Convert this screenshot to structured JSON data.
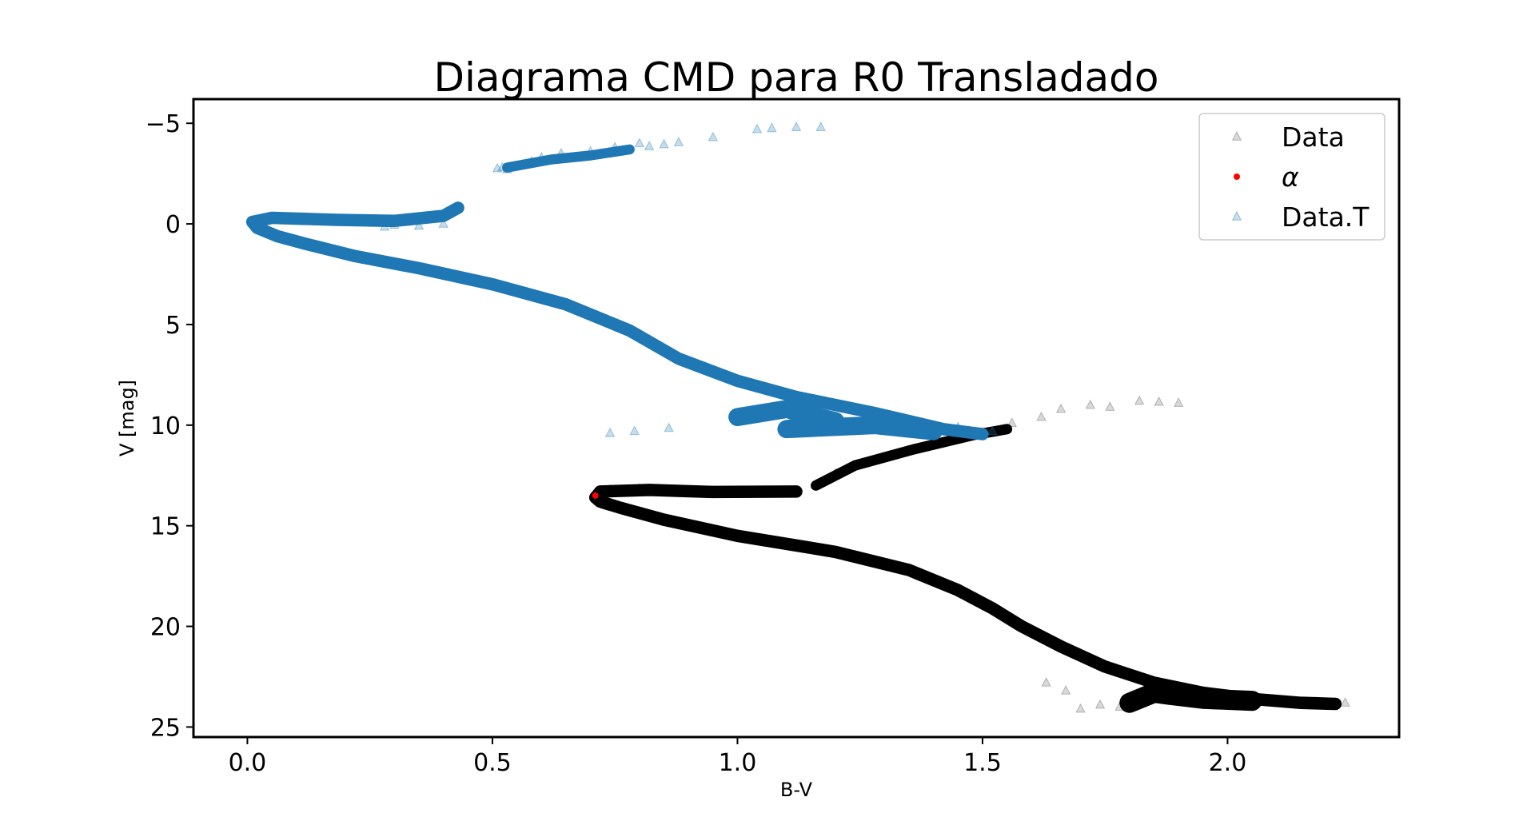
{
  "chart_data": {
    "type": "scatter",
    "title": "Diagrama CMD para R0 Transladado",
    "xlabel": "B-V",
    "ylabel": "V [mag]",
    "xlim": [
      -0.11,
      2.35
    ],
    "ylim": [
      25.5,
      -6.2
    ],
    "y_inverted": true,
    "grid": false,
    "legend_position": "top-right",
    "xticks": [
      {
        "value": 0.0,
        "label": "0.0"
      },
      {
        "value": 0.5,
        "label": "0.5"
      },
      {
        "value": 1.0,
        "label": "1.0"
      },
      {
        "value": 1.5,
        "label": "1.5"
      },
      {
        "value": 2.0,
        "label": "2.0"
      }
    ],
    "yticks": [
      {
        "value": -5,
        "label": "−5"
      },
      {
        "value": 0,
        "label": "0"
      },
      {
        "value": 5,
        "label": "5"
      },
      {
        "value": 10,
        "label": "10"
      },
      {
        "value": 15,
        "label": "15"
      },
      {
        "value": 20,
        "label": "20"
      },
      {
        "value": 25,
        "label": "25"
      }
    ],
    "series": [
      {
        "name": "Data",
        "marker": "triangle",
        "color": "#000000",
        "alpha": 0.15,
        "points": [
          [
            0.74,
            13.2
          ],
          [
            0.8,
            13.15
          ],
          [
            0.87,
            13.25
          ],
          [
            0.95,
            13.3
          ],
          [
            1.02,
            13.3
          ],
          [
            1.1,
            13.25
          ],
          [
            1.16,
            13.0
          ],
          [
            1.2,
            12.4
          ],
          [
            1.26,
            11.9
          ],
          [
            1.32,
            11.5
          ],
          [
            1.38,
            11.1
          ],
          [
            1.45,
            10.6
          ],
          [
            1.5,
            10.35
          ],
          [
            1.56,
            9.9
          ],
          [
            1.62,
            9.6
          ],
          [
            1.66,
            9.2
          ],
          [
            1.72,
            9.0
          ],
          [
            1.76,
            9.1
          ],
          [
            1.82,
            8.8
          ],
          [
            1.86,
            8.85
          ],
          [
            1.9,
            8.9
          ],
          [
            1.74,
            23.9
          ],
          [
            1.7,
            24.1
          ],
          [
            1.78,
            24.0
          ],
          [
            2.12,
            23.8
          ],
          [
            2.18,
            23.75
          ],
          [
            2.2,
            23.8
          ],
          [
            2.24,
            23.8
          ],
          [
            1.63,
            22.8
          ],
          [
            1.67,
            23.2
          ]
        ],
        "curves": [
          {
            "width": 0.12,
            "points": [
              [
                1.16,
                13.0
              ],
              [
                1.24,
                12.0
              ],
              [
                1.36,
                11.2
              ],
              [
                1.48,
                10.5
              ],
              [
                1.55,
                10.2
              ]
            ]
          },
          {
            "width": 0.22,
            "points": [
              [
                1.12,
                13.3
              ],
              [
                0.95,
                13.32
              ],
              [
                0.82,
                13.22
              ],
              [
                0.72,
                13.3
              ],
              [
                0.71,
                13.6
              ],
              [
                0.72,
                13.8
              ],
              [
                0.76,
                14.1
              ],
              [
                0.85,
                14.7
              ],
              [
                1.0,
                15.5
              ],
              [
                1.2,
                16.3
              ],
              [
                1.35,
                17.2
              ],
              [
                1.45,
                18.2
              ],
              [
                1.52,
                19.1
              ],
              [
                1.58,
                20.0
              ],
              [
                1.66,
                21.0
              ],
              [
                1.75,
                22.0
              ],
              [
                1.85,
                22.8
              ],
              [
                1.95,
                23.3
              ],
              [
                2.05,
                23.6
              ],
              [
                2.15,
                23.8
              ],
              [
                2.22,
                23.85
              ]
            ]
          },
          {
            "width": 0.6,
            "points": [
              [
                1.8,
                23.8
              ],
              [
                1.85,
                23.3
              ],
              [
                1.88,
                23.4
              ],
              [
                1.95,
                23.6
              ],
              [
                2.05,
                23.7
              ]
            ]
          }
        ]
      },
      {
        "name": "α",
        "marker": "circle",
        "color": "#ff0000",
        "alpha": 1.0,
        "points": [
          [
            0.71,
            13.5
          ]
        ]
      },
      {
        "name": "Data.T",
        "marker": "triangle",
        "color": "#1f77b4",
        "alpha": 0.25,
        "points": [
          [
            0.52,
            -2.8
          ],
          [
            0.53,
            -2.7
          ],
          [
            0.51,
            -2.75
          ],
          [
            0.58,
            -3.1
          ],
          [
            0.6,
            -3.3
          ],
          [
            0.64,
            -3.5
          ],
          [
            0.7,
            -3.6
          ],
          [
            0.72,
            -3.45
          ],
          [
            0.75,
            -3.8
          ],
          [
            0.8,
            -4.0
          ],
          [
            0.82,
            -3.85
          ],
          [
            0.85,
            -3.95
          ],
          [
            0.88,
            -4.05
          ],
          [
            0.95,
            -4.3
          ],
          [
            1.04,
            -4.7
          ],
          [
            1.07,
            -4.75
          ],
          [
            1.12,
            -4.8
          ],
          [
            1.17,
            -4.8
          ],
          [
            0.74,
            10.4
          ],
          [
            0.79,
            10.3
          ],
          [
            0.86,
            10.15
          ],
          [
            1.43,
            10.3
          ],
          [
            1.45,
            10.1
          ],
          [
            1.52,
            10.3
          ],
          [
            0.35,
            0.1
          ],
          [
            0.28,
            0.15
          ],
          [
            0.3,
            0.05
          ],
          [
            0.4,
            0.0
          ]
        ],
        "curves": [
          {
            "width": 0.1,
            "points": [
              [
                0.53,
                -2.8
              ],
              [
                0.62,
                -3.2
              ],
              [
                0.7,
                -3.4
              ],
              [
                0.78,
                -3.7
              ]
            ]
          },
          {
            "width": 0.22,
            "points": [
              [
                0.43,
                -0.8
              ],
              [
                0.4,
                -0.4
              ],
              [
                0.3,
                -0.15
              ],
              [
                0.18,
                -0.2
              ],
              [
                0.05,
                -0.3
              ],
              [
                0.01,
                -0.1
              ],
              [
                0.02,
                0.2
              ],
              [
                0.06,
                0.6
              ],
              [
                0.12,
                1.0
              ],
              [
                0.22,
                1.6
              ],
              [
                0.35,
                2.2
              ],
              [
                0.5,
                3.0
              ],
              [
                0.65,
                4.0
              ],
              [
                0.78,
                5.3
              ],
              [
                0.88,
                6.7
              ],
              [
                1.0,
                7.8
              ],
              [
                1.12,
                8.6
              ],
              [
                1.28,
                9.4
              ],
              [
                1.42,
                10.2
              ],
              [
                1.5,
                10.45
              ]
            ]
          },
          {
            "width": 0.5,
            "points": [
              [
                1.0,
                9.6
              ],
              [
                1.1,
                9.2
              ],
              [
                1.2,
                9.8
              ],
              [
                1.1,
                10.2
              ],
              [
                1.28,
                10.0
              ],
              [
                1.4,
                10.3
              ]
            ]
          }
        ]
      }
    ]
  }
}
